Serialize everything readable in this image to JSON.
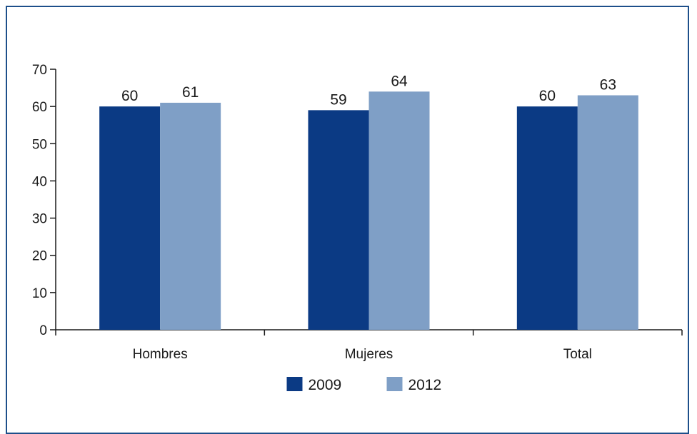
{
  "chart_data": {
    "type": "bar",
    "categories": [
      "Hombres",
      "Mujeres",
      "Total"
    ],
    "series": [
      {
        "name": "2009",
        "values": [
          60,
          59,
          60
        ],
        "color": "#0b3a84"
      },
      {
        "name": "2012",
        "values": [
          61,
          64,
          63
        ],
        "color": "#7f9fc6"
      }
    ],
    "ylim": [
      0,
      70
    ],
    "yticks": [
      0,
      10,
      20,
      30,
      40,
      50,
      60,
      70
    ],
    "grid": false,
    "legend_position": "bottom"
  }
}
